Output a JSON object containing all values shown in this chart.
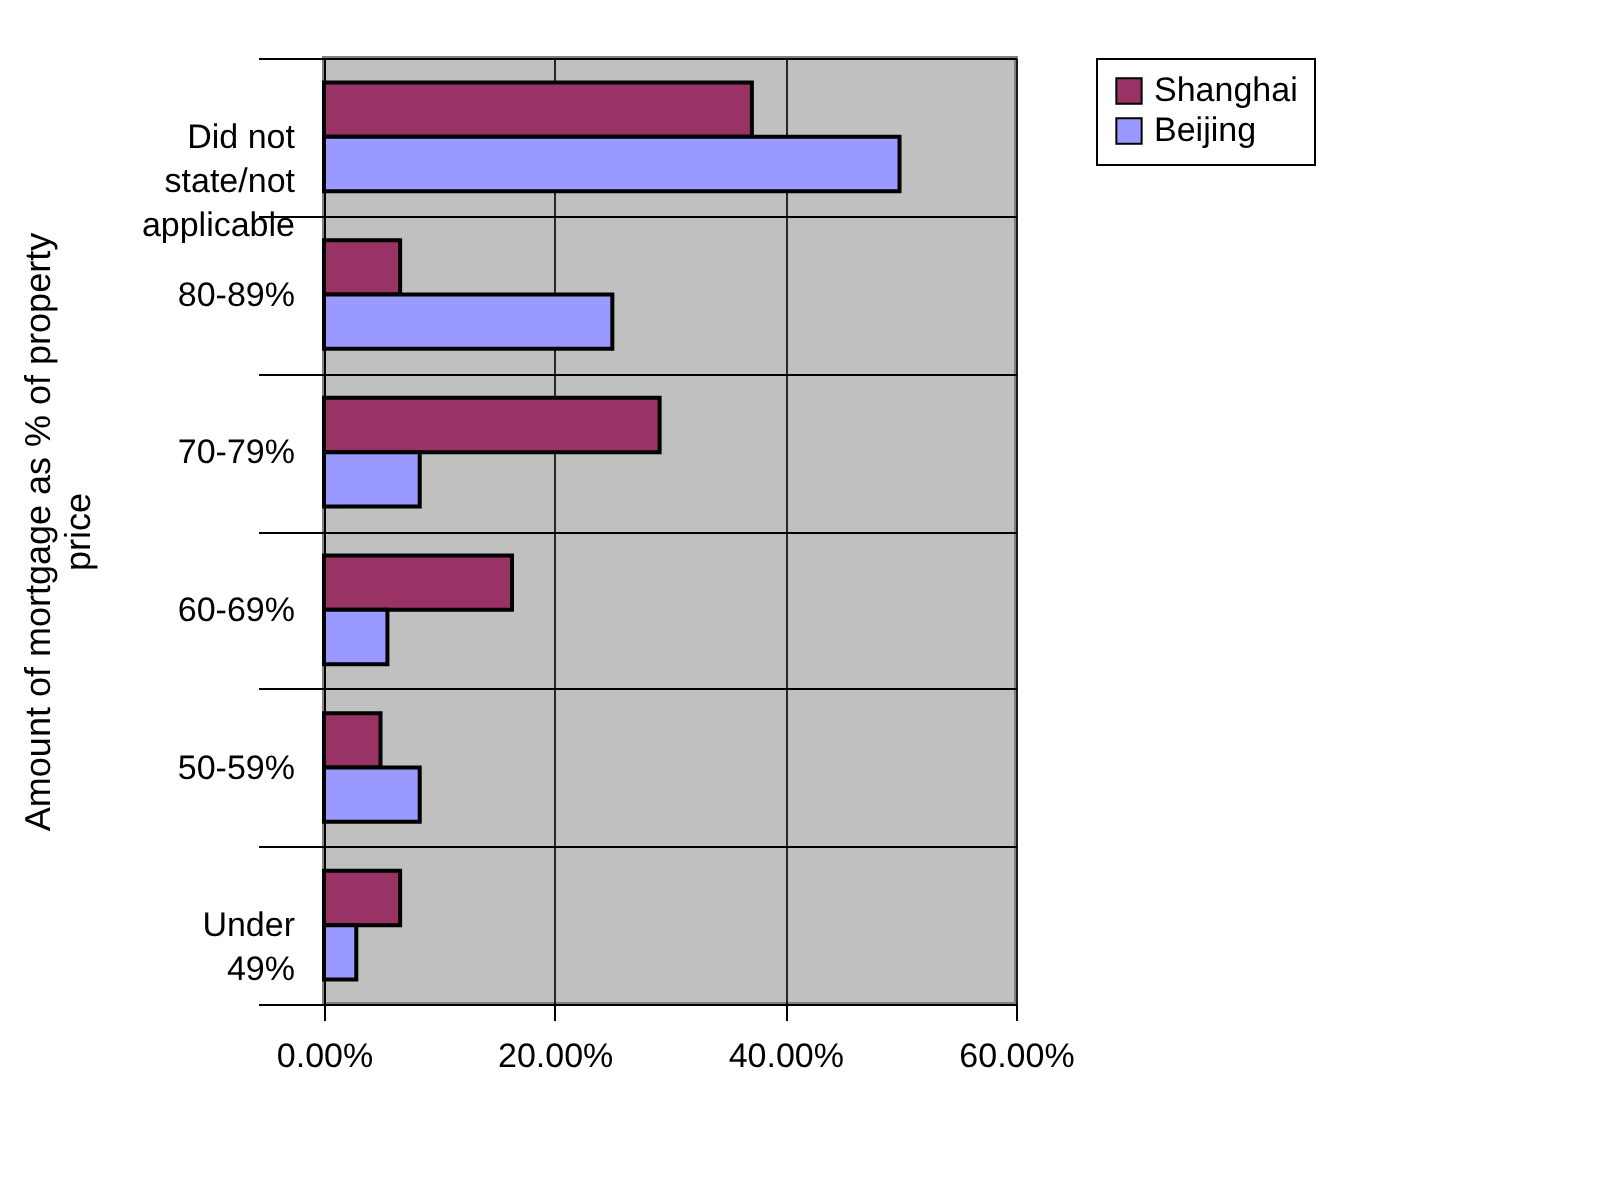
{
  "chart_data": {
    "type": "bar",
    "orientation": "horizontal",
    "ylabel": "Amount of mortgage as % of property price",
    "categories": [
      "Did not\nstate/not\napplicable",
      "80-89%",
      "70-79%",
      "60-69%",
      "50-59%",
      "Under\n49%"
    ],
    "series": [
      {
        "name": "Shanghai",
        "color": "#993366",
        "values": [
          37.1,
          6.6,
          29.1,
          16.3,
          4.9,
          6.6
        ]
      },
      {
        "name": "Beijing",
        "color": "#9999ff",
        "values": [
          49.9,
          25.0,
          8.3,
          5.5,
          8.3,
          2.8
        ]
      }
    ],
    "xlim": [
      0,
      60
    ],
    "xticks": [
      {
        "value": 0,
        "label": "0.00%"
      },
      {
        "value": 20,
        "label": "20.00%"
      },
      {
        "value": 40,
        "label": "40.00%"
      },
      {
        "value": 60,
        "label": "60.00%"
      }
    ],
    "grid": "x",
    "legend": "right"
  }
}
